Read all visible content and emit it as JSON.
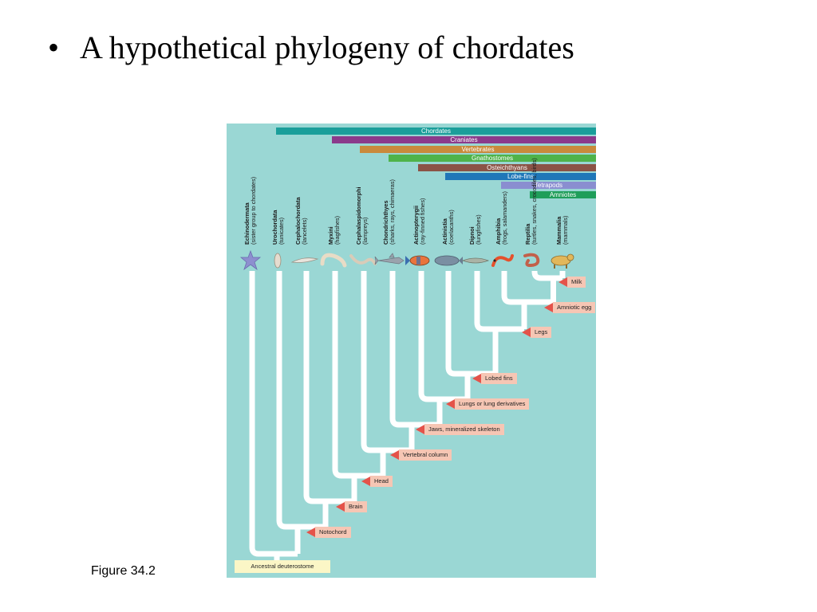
{
  "slide": {
    "bullet": "•",
    "title": "A hypothetical phylogeny of chordates",
    "figure_label": "Figure 34.2"
  },
  "colors": {
    "figure_bg": "#9ad7d4",
    "tree_lines": "#ffffff",
    "char_label_bg": "#f6c6b4",
    "char_arrow": "#e4534a",
    "ancestor_bg": "#fbf6c6"
  },
  "clades": [
    {
      "name": "Chordates",
      "color": "#1a9e9a"
    },
    {
      "name": "Craniates",
      "color": "#8b3a8b"
    },
    {
      "name": "Vertebrates",
      "color": "#c98a3c"
    },
    {
      "name": "Gnathostomes",
      "color": "#4fb34a"
    },
    {
      "name": "Osteichthyans",
      "color": "#8b5346"
    },
    {
      "name": "Lobe-fins",
      "color": "#1f77b8"
    },
    {
      "name": "Tetrapods",
      "color": "#8a8ed0"
    },
    {
      "name": "Amniotes",
      "color": "#1f9e5a"
    }
  ],
  "taxa": [
    {
      "name": "Echinodermata",
      "common": "(sister group to chordates)",
      "icon": "sea-star-icon"
    },
    {
      "name": "Urochordata",
      "common": "(tunicates)",
      "icon": "tunicate-icon"
    },
    {
      "name": "Cephalochordata",
      "common": "(lancelets)",
      "icon": "lancelet-icon"
    },
    {
      "name": "Myxini",
      "common": "(hagfishes)",
      "icon": "hagfish-icon"
    },
    {
      "name": "Cephalaspidomorphi",
      "common": "(lampreys)",
      "icon": "lamprey-icon"
    },
    {
      "name": "Chondrichthyes",
      "common": "(sharks, rays, chimaeras)",
      "icon": "shark-icon"
    },
    {
      "name": "Actinopterygii",
      "common": "(ray-finned fishes)",
      "icon": "ray-finned-fish-icon"
    },
    {
      "name": "Actinistia",
      "common": "(coelacanths)",
      "icon": "coelacanth-icon"
    },
    {
      "name": "Dipnoi",
      "common": "(lungfishes)",
      "icon": "lungfish-icon"
    },
    {
      "name": "Amphibia",
      "common": "(frogs, salamanders)",
      "icon": "salamander-icon"
    },
    {
      "name": "Reptilia",
      "common": "(turtles, snakes, crocodiles, birds)",
      "icon": "snake-icon"
    },
    {
      "name": "Mammalia",
      "common": "(mammals)",
      "icon": "mammal-icon"
    }
  ],
  "characters": [
    "Milk",
    "Amniotic egg",
    "Legs",
    "Lobed fins",
    "Lungs or lung derivatives",
    "Jaws, mineralized skeleton",
    "Vertebral column",
    "Head",
    "Brain",
    "Notochord"
  ],
  "ancestor": "Ancestral deuterostome"
}
